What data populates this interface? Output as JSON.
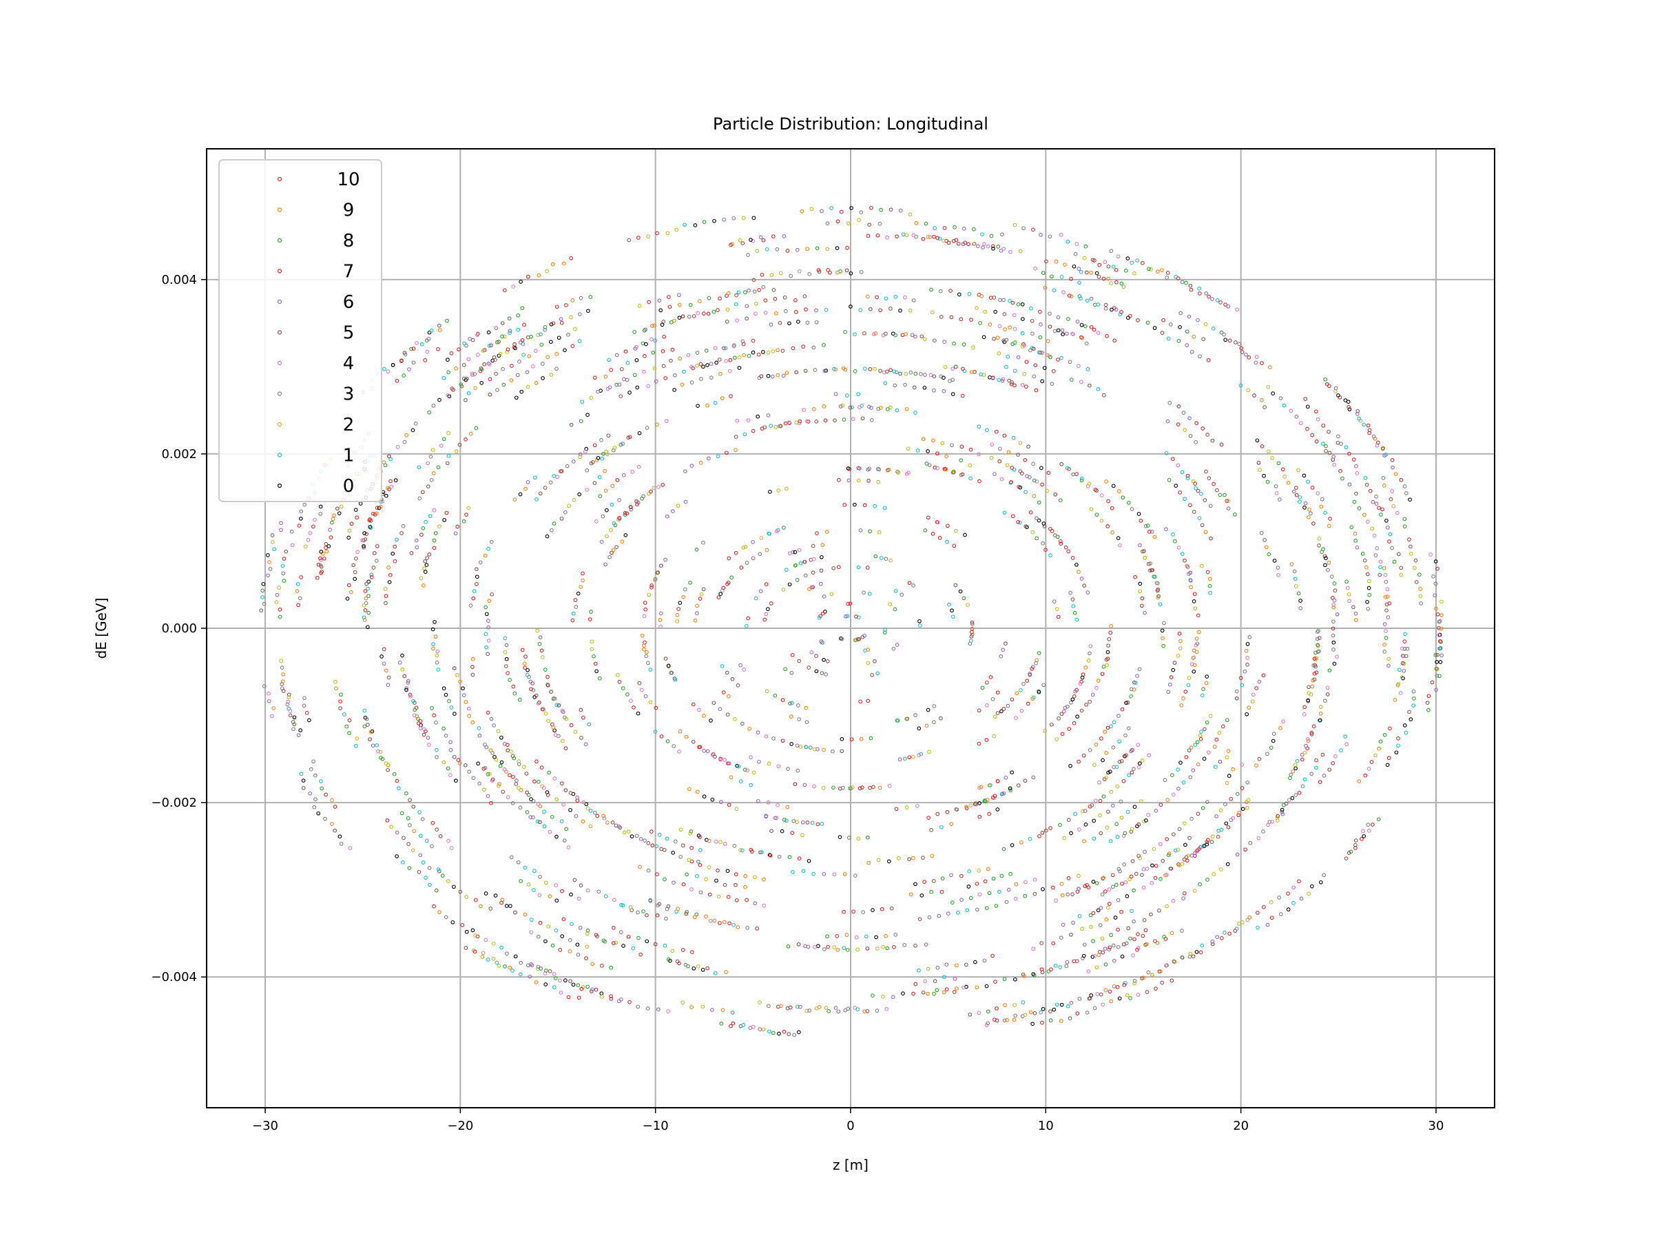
{
  "chart_data": {
    "type": "scatter",
    "title": "Particle Distribution: Longitudinal",
    "xlabel": "z [m]",
    "ylabel": "dE [GeV]",
    "xlim": [
      -33,
      33
    ],
    "ylim": [
      -0.0055,
      0.0055
    ],
    "xticks": [
      -30,
      -20,
      -10,
      0,
      10,
      20,
      30
    ],
    "xtick_labels": [
      "−30",
      "−20",
      "−10",
      "0",
      "10",
      "20",
      "30"
    ],
    "yticks": [
      -0.004,
      -0.002,
      0.0,
      0.002,
      0.004
    ],
    "ytick_labels": [
      "−0.004",
      "−0.002",
      "0.000",
      "0.002",
      "0.004"
    ],
    "grid": true,
    "legend_position": "top-left",
    "distribution": {
      "shape": "concentric elliptical rings",
      "z_extent": [
        -30.2,
        30.2
      ],
      "dE_extent": [
        -0.0048,
        0.0048
      ],
      "ring_count": 34
    },
    "series": [
      {
        "name": "10",
        "color": "#d62728"
      },
      {
        "name": "9",
        "color": "#ff7f0e"
      },
      {
        "name": "8",
        "color": "#2ca02c"
      },
      {
        "name": "7",
        "color": "#d62728"
      },
      {
        "name": "6",
        "color": "#9467bd"
      },
      {
        "name": "5",
        "color": "#8c564b"
      },
      {
        "name": "4",
        "color": "#e377c2"
      },
      {
        "name": "3",
        "color": "#7f7f7f"
      },
      {
        "name": "2",
        "color": "#bcbd22"
      },
      {
        "name": "1",
        "color": "#17becf"
      },
      {
        "name": "0",
        "color": "#000000"
      }
    ]
  }
}
